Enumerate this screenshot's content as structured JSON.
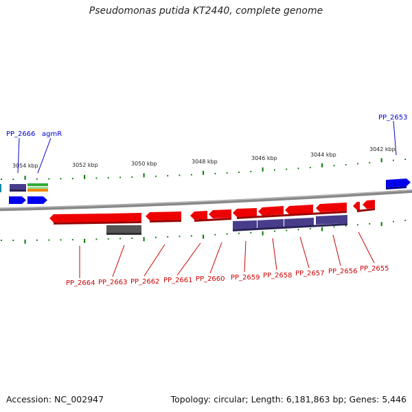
{
  "title": "Pseudomonas putida KT2440, complete genome",
  "footer": {
    "accession": "Accession: NC_002947",
    "summary": "Topology: circular; Length: 6,181,863 bp; Genes: 5,446"
  },
  "colors": {
    "forward_gene": "#0000ee",
    "reverse_gene": "#ee0000",
    "cds_purple": "#483d8b",
    "pseudogene_gray": "#555555",
    "rna_green": "#33aa33",
    "rna_orange": "#ee8800",
    "backbone": "#888888",
    "tick": "#007700"
  },
  "tick_labels": [
    "3054 kbp",
    "3052 kbp",
    "3050 kbp",
    "3048 kbp",
    "3046 kbp",
    "3044 kbp",
    "3042 kbp"
  ],
  "top_labels": [
    "PP_2666",
    "agmR",
    "PP_2653"
  ],
  "bottom_labels": [
    "PP_2664",
    "PP_2663",
    "PP_2662",
    "PP_2661",
    "PP_2660",
    "PP_2659",
    "PP_2658",
    "PP_2657",
    "PP_2656",
    "PP_2655"
  ]
}
